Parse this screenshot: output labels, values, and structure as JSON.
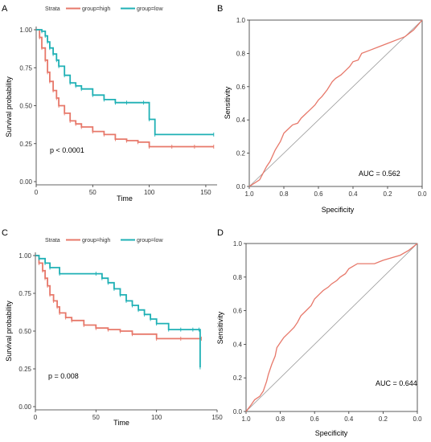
{
  "colors": {
    "high": "#E7786A",
    "low": "#1FB0B5",
    "axis": "#333333",
    "diagonal": "#9a9a9a"
  },
  "chart_data": [
    {
      "panel": "A",
      "type": "line",
      "title": "",
      "xlabel": "Time",
      "ylabel": "Survival probability",
      "xlim": [
        0,
        160
      ],
      "ylim": [
        0,
        1
      ],
      "xticks": [
        "0",
        "50",
        "100",
        "150"
      ],
      "yticks": [
        "0.00",
        "0.25",
        "0.50",
        "0.75",
        "1.00"
      ],
      "legend_title": "Strata",
      "annotation": "p < 0.0001",
      "series": [
        {
          "name": "group=high",
          "color": "#E7786A",
          "x": [
            0,
            3,
            5,
            8,
            10,
            12,
            15,
            18,
            20,
            25,
            30,
            35,
            40,
            50,
            60,
            70,
            80,
            90,
            100,
            120,
            140,
            157
          ],
          "y": [
            1.0,
            0.95,
            0.88,
            0.8,
            0.72,
            0.66,
            0.6,
            0.55,
            0.5,
            0.45,
            0.4,
            0.38,
            0.36,
            0.33,
            0.31,
            0.28,
            0.27,
            0.26,
            0.23,
            0.23,
            0.23,
            0.23
          ]
        },
        {
          "name": "group=low",
          "color": "#1FB0B5",
          "x": [
            0,
            5,
            8,
            10,
            12,
            15,
            18,
            20,
            25,
            30,
            35,
            40,
            50,
            60,
            70,
            80,
            95,
            100,
            105,
            157
          ],
          "y": [
            1.0,
            0.99,
            0.96,
            0.92,
            0.88,
            0.84,
            0.8,
            0.76,
            0.7,
            0.65,
            0.63,
            0.61,
            0.57,
            0.54,
            0.52,
            0.52,
            0.52,
            0.41,
            0.31,
            0.31
          ]
        }
      ]
    },
    {
      "panel": "B",
      "type": "line",
      "title": "",
      "xlabel": "Specificity",
      "ylabel": "Sensitivity",
      "xlim": [
        1.0,
        0.0
      ],
      "ylim": [
        0,
        1
      ],
      "xticks": [
        "1.0",
        "0.8",
        "0.6",
        "0.4",
        "0.2",
        "0.0"
      ],
      "yticks": [
        "0.0",
        "0.2",
        "0.4",
        "0.6",
        "0.8",
        "1.0"
      ],
      "annotation": "AUC = 0.562",
      "series": [
        {
          "name": "",
          "color": "#E7786A",
          "x": [
            1.0,
            0.97,
            0.94,
            0.92,
            0.9,
            0.88,
            0.85,
            0.82,
            0.8,
            0.77,
            0.75,
            0.72,
            0.7,
            0.68,
            0.65,
            0.62,
            0.6,
            0.58,
            0.55,
            0.52,
            0.5,
            0.47,
            0.45,
            0.42,
            0.4,
            0.37,
            0.35,
            0.3,
            0.25,
            0.2,
            0.15,
            0.1,
            0.05,
            0.0
          ],
          "y": [
            0.0,
            0.02,
            0.04,
            0.08,
            0.12,
            0.15,
            0.22,
            0.27,
            0.32,
            0.35,
            0.37,
            0.38,
            0.41,
            0.43,
            0.46,
            0.49,
            0.52,
            0.54,
            0.58,
            0.63,
            0.65,
            0.67,
            0.69,
            0.72,
            0.75,
            0.76,
            0.8,
            0.82,
            0.84,
            0.86,
            0.88,
            0.9,
            0.94,
            1.0
          ]
        }
      ]
    },
    {
      "panel": "C",
      "type": "line",
      "title": "",
      "xlabel": "Time",
      "ylabel": "Survival probability",
      "xlim": [
        0,
        150
      ],
      "ylim": [
        0,
        1
      ],
      "xticks": [
        "0",
        "50",
        "100",
        "150"
      ],
      "yticks": [
        "0.00",
        "0.25",
        "0.50",
        "0.75",
        "1.00"
      ],
      "legend_title": "Strata",
      "annotation": "p = 0.008",
      "series": [
        {
          "name": "group=high",
          "color": "#E7786A",
          "x": [
            0,
            3,
            6,
            8,
            10,
            12,
            15,
            18,
            20,
            25,
            30,
            40,
            50,
            60,
            70,
            80,
            100,
            120,
            137
          ],
          "y": [
            1.0,
            0.95,
            0.9,
            0.85,
            0.8,
            0.74,
            0.7,
            0.66,
            0.62,
            0.59,
            0.57,
            0.54,
            0.52,
            0.51,
            0.5,
            0.48,
            0.45,
            0.45,
            0.45
          ]
        },
        {
          "name": "group=low",
          "color": "#1FB0B5",
          "x": [
            0,
            3,
            8,
            12,
            20,
            50,
            55,
            60,
            65,
            70,
            75,
            80,
            85,
            90,
            95,
            100,
            110,
            120,
            130,
            135,
            136
          ],
          "y": [
            1.0,
            0.98,
            0.95,
            0.92,
            0.88,
            0.88,
            0.85,
            0.82,
            0.78,
            0.74,
            0.7,
            0.67,
            0.64,
            0.61,
            0.58,
            0.55,
            0.51,
            0.51,
            0.51,
            0.51,
            0.26
          ]
        }
      ]
    },
    {
      "panel": "D",
      "type": "line",
      "title": "",
      "xlabel": "Specificity",
      "ylabel": "Sensitivity",
      "xlim": [
        1.0,
        0.0
      ],
      "ylim": [
        0,
        1
      ],
      "xticks": [
        "1.0",
        "0.8",
        "0.6",
        "0.4",
        "0.2",
        "0.0"
      ],
      "yticks": [
        "0.0",
        "0.2",
        "0.4",
        "0.6",
        "0.8",
        "1.0"
      ],
      "annotation": "AUC = 0.644",
      "series": [
        {
          "name": "",
          "color": "#E7786A",
          "x": [
            1.0,
            0.97,
            0.95,
            0.92,
            0.9,
            0.88,
            0.87,
            0.85,
            0.83,
            0.82,
            0.8,
            0.78,
            0.75,
            0.72,
            0.7,
            0.68,
            0.65,
            0.62,
            0.6,
            0.57,
            0.55,
            0.52,
            0.5,
            0.47,
            0.45,
            0.42,
            0.4,
            0.35,
            0.3,
            0.25,
            0.2,
            0.1,
            0.05,
            0.0
          ],
          "y": [
            0.0,
            0.04,
            0.07,
            0.09,
            0.12,
            0.18,
            0.22,
            0.28,
            0.33,
            0.38,
            0.41,
            0.44,
            0.47,
            0.5,
            0.53,
            0.57,
            0.6,
            0.63,
            0.67,
            0.7,
            0.72,
            0.74,
            0.76,
            0.78,
            0.8,
            0.82,
            0.85,
            0.88,
            0.88,
            0.88,
            0.9,
            0.93,
            0.96,
            1.0
          ]
        }
      ]
    }
  ]
}
